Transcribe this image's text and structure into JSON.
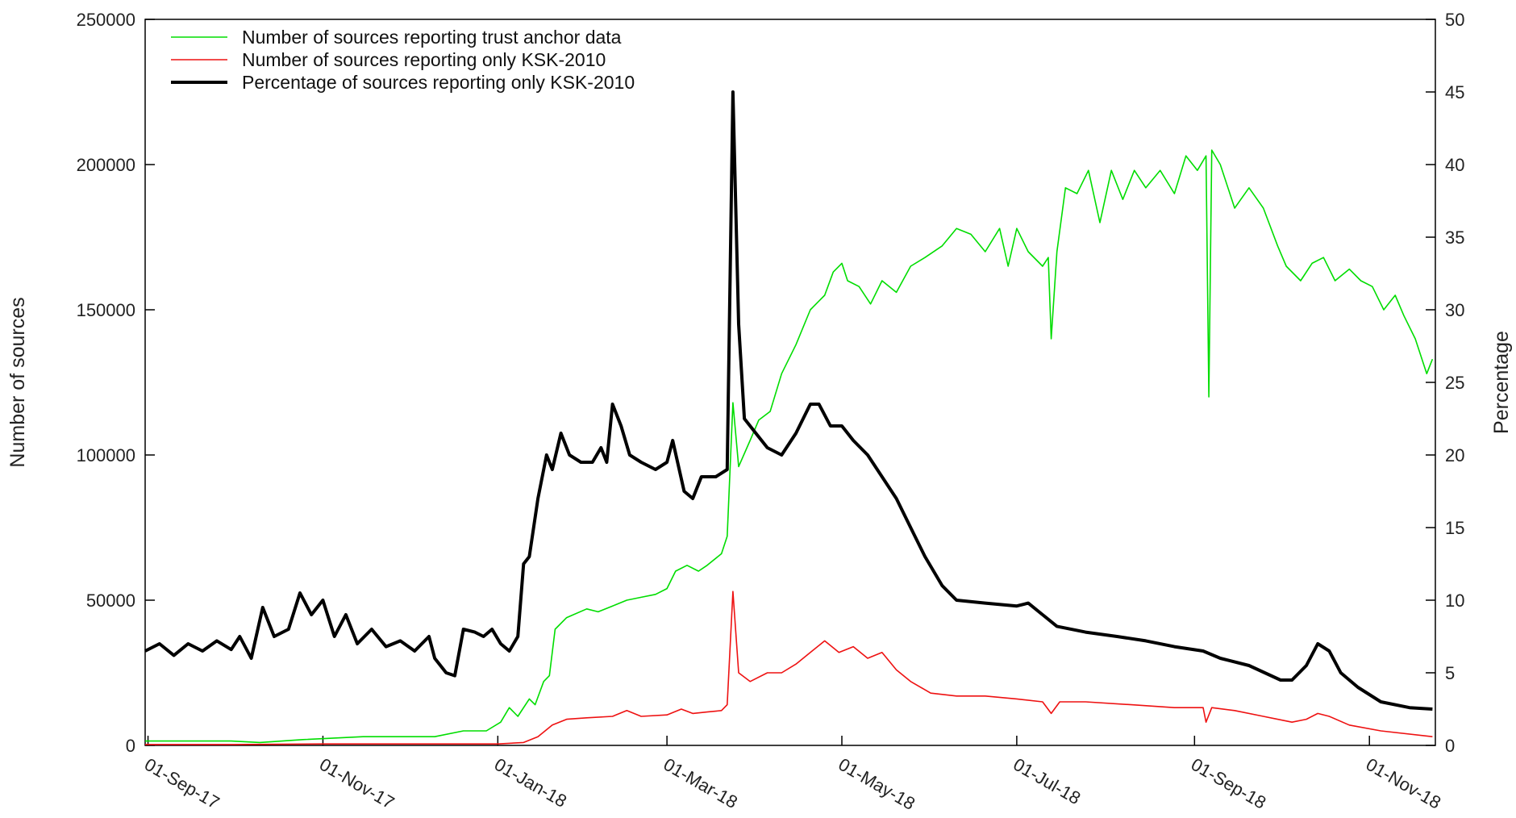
{
  "chart_data": {
    "type": "line",
    "title": "",
    "ylabel": "Number of sources",
    "y2label": "Percentage",
    "ylim": [
      0,
      250000
    ],
    "y2lim": [
      0,
      50
    ],
    "xlim": [
      "2017-08-31",
      "2018-11-24"
    ],
    "y_ticks": [
      0,
      50000,
      100000,
      150000,
      200000,
      250000
    ],
    "y2_ticks": [
      0,
      5,
      10,
      15,
      20,
      25,
      30,
      35,
      40,
      45,
      50
    ],
    "x_ticks": [
      {
        "date": "2017-09-01",
        "label": "01-Sep-17"
      },
      {
        "date": "2017-11-01",
        "label": "01-Nov-17"
      },
      {
        "date": "2018-01-01",
        "label": "01-Jan-18"
      },
      {
        "date": "2018-03-01",
        "label": "01-Mar-18"
      },
      {
        "date": "2018-05-01",
        "label": "01-May-18"
      },
      {
        "date": "2018-07-01",
        "label": "01-Jul-18"
      },
      {
        "date": "2018-09-01",
        "label": "01-Sep-18"
      },
      {
        "date": "2018-11-01",
        "label": "01-Nov-18"
      }
    ],
    "grid": false,
    "legend_position": "top-left",
    "series": [
      {
        "name": "Number of sources reporting trust anchor data",
        "axis": "left",
        "color": "#00dd00",
        "points": [
          [
            "2017-08-31",
            1500
          ],
          [
            "2017-09-30",
            1500
          ],
          [
            "2017-10-10",
            1000
          ],
          [
            "2017-10-25",
            2000
          ],
          [
            "2017-11-15",
            3000
          ],
          [
            "2017-12-10",
            3000
          ],
          [
            "2017-12-20",
            5000
          ],
          [
            "2017-12-28",
            5000
          ],
          [
            "2018-01-02",
            8000
          ],
          [
            "2018-01-05",
            13000
          ],
          [
            "2018-01-08",
            10000
          ],
          [
            "2018-01-12",
            16000
          ],
          [
            "2018-01-14",
            14000
          ],
          [
            "2018-01-17",
            22000
          ],
          [
            "2018-01-19",
            24000
          ],
          [
            "2018-01-21",
            40000
          ],
          [
            "2018-01-25",
            44000
          ],
          [
            "2018-02-01",
            47000
          ],
          [
            "2018-02-05",
            46000
          ],
          [
            "2018-02-10",
            48000
          ],
          [
            "2018-02-15",
            50000
          ],
          [
            "2018-02-20",
            51000
          ],
          [
            "2018-02-25",
            52000
          ],
          [
            "2018-03-01",
            54000
          ],
          [
            "2018-03-04",
            60000
          ],
          [
            "2018-03-08",
            62000
          ],
          [
            "2018-03-12",
            60000
          ],
          [
            "2018-03-15",
            62000
          ],
          [
            "2018-03-20",
            66000
          ],
          [
            "2018-03-22",
            72000
          ],
          [
            "2018-03-24",
            118000
          ],
          [
            "2018-03-26",
            96000
          ],
          [
            "2018-03-30",
            105000
          ],
          [
            "2018-04-02",
            112000
          ],
          [
            "2018-04-06",
            115000
          ],
          [
            "2018-04-10",
            128000
          ],
          [
            "2018-04-15",
            138000
          ],
          [
            "2018-04-20",
            150000
          ],
          [
            "2018-04-25",
            155000
          ],
          [
            "2018-04-28",
            163000
          ],
          [
            "2018-05-01",
            166000
          ],
          [
            "2018-05-03",
            160000
          ],
          [
            "2018-05-07",
            158000
          ],
          [
            "2018-05-11",
            152000
          ],
          [
            "2018-05-15",
            160000
          ],
          [
            "2018-05-20",
            156000
          ],
          [
            "2018-05-25",
            165000
          ],
          [
            "2018-05-30",
            168000
          ],
          [
            "2018-06-05",
            172000
          ],
          [
            "2018-06-10",
            178000
          ],
          [
            "2018-06-15",
            176000
          ],
          [
            "2018-06-20",
            170000
          ],
          [
            "2018-06-25",
            178000
          ],
          [
            "2018-06-28",
            165000
          ],
          [
            "2018-07-01",
            178000
          ],
          [
            "2018-07-05",
            170000
          ],
          [
            "2018-07-10",
            165000
          ],
          [
            "2018-07-12",
            168000
          ],
          [
            "2018-07-13",
            140000
          ],
          [
            "2018-07-15",
            170000
          ],
          [
            "2018-07-18",
            192000
          ],
          [
            "2018-07-22",
            190000
          ],
          [
            "2018-07-26",
            198000
          ],
          [
            "2018-07-30",
            180000
          ],
          [
            "2018-08-03",
            198000
          ],
          [
            "2018-08-07",
            188000
          ],
          [
            "2018-08-11",
            198000
          ],
          [
            "2018-08-15",
            192000
          ],
          [
            "2018-08-20",
            198000
          ],
          [
            "2018-08-25",
            190000
          ],
          [
            "2018-08-29",
            203000
          ],
          [
            "2018-09-02",
            198000
          ],
          [
            "2018-09-05",
            203000
          ],
          [
            "2018-09-06",
            120000
          ],
          [
            "2018-09-07",
            205000
          ],
          [
            "2018-09-10",
            200000
          ],
          [
            "2018-09-15",
            185000
          ],
          [
            "2018-09-20",
            192000
          ],
          [
            "2018-09-25",
            185000
          ],
          [
            "2018-09-30",
            172000
          ],
          [
            "2018-10-03",
            165000
          ],
          [
            "2018-10-08",
            160000
          ],
          [
            "2018-10-12",
            166000
          ],
          [
            "2018-10-16",
            168000
          ],
          [
            "2018-10-20",
            160000
          ],
          [
            "2018-10-25",
            164000
          ],
          [
            "2018-10-29",
            160000
          ],
          [
            "2018-11-02",
            158000
          ],
          [
            "2018-11-06",
            150000
          ],
          [
            "2018-11-10",
            155000
          ],
          [
            "2018-11-13",
            148000
          ],
          [
            "2018-11-17",
            140000
          ],
          [
            "2018-11-21",
            128000
          ],
          [
            "2018-11-23",
            133000
          ]
        ]
      },
      {
        "name": "Number of sources reporting only KSK-2010",
        "axis": "left",
        "color": "#ee1111",
        "points": [
          [
            "2017-08-31",
            300
          ],
          [
            "2017-10-01",
            300
          ],
          [
            "2017-11-01",
            500
          ],
          [
            "2017-12-01",
            500
          ],
          [
            "2018-01-01",
            500
          ],
          [
            "2018-01-10",
            1000
          ],
          [
            "2018-01-15",
            3000
          ],
          [
            "2018-01-20",
            7000
          ],
          [
            "2018-01-25",
            9000
          ],
          [
            "2018-02-01",
            9500
          ],
          [
            "2018-02-10",
            10000
          ],
          [
            "2018-02-15",
            12000
          ],
          [
            "2018-02-20",
            10000
          ],
          [
            "2018-03-01",
            10500
          ],
          [
            "2018-03-06",
            12500
          ],
          [
            "2018-03-10",
            11000
          ],
          [
            "2018-03-15",
            11500
          ],
          [
            "2018-03-20",
            12000
          ],
          [
            "2018-03-22",
            14000
          ],
          [
            "2018-03-24",
            53000
          ],
          [
            "2018-03-26",
            25000
          ],
          [
            "2018-03-30",
            22000
          ],
          [
            "2018-04-05",
            25000
          ],
          [
            "2018-04-10",
            25000
          ],
          [
            "2018-04-15",
            28000
          ],
          [
            "2018-04-20",
            32000
          ],
          [
            "2018-04-25",
            36000
          ],
          [
            "2018-04-30",
            32000
          ],
          [
            "2018-05-05",
            34000
          ],
          [
            "2018-05-10",
            30000
          ],
          [
            "2018-05-15",
            32000
          ],
          [
            "2018-05-20",
            26000
          ],
          [
            "2018-05-25",
            22000
          ],
          [
            "2018-06-01",
            18000
          ],
          [
            "2018-06-10",
            17000
          ],
          [
            "2018-06-20",
            17000
          ],
          [
            "2018-07-01",
            16000
          ],
          [
            "2018-07-10",
            15000
          ],
          [
            "2018-07-13",
            11000
          ],
          [
            "2018-07-16",
            15000
          ],
          [
            "2018-07-25",
            15000
          ],
          [
            "2018-08-10",
            14000
          ],
          [
            "2018-08-25",
            13000
          ],
          [
            "2018-09-04",
            13000
          ],
          [
            "2018-09-05",
            8000
          ],
          [
            "2018-09-07",
            13000
          ],
          [
            "2018-09-15",
            12000
          ],
          [
            "2018-09-25",
            10000
          ],
          [
            "2018-10-05",
            8000
          ],
          [
            "2018-10-10",
            9000
          ],
          [
            "2018-10-14",
            11000
          ],
          [
            "2018-10-18",
            10000
          ],
          [
            "2018-10-25",
            7000
          ],
          [
            "2018-11-05",
            5000
          ],
          [
            "2018-11-23",
            3000
          ]
        ]
      },
      {
        "name": "Percentage of sources reporting only KSK-2010",
        "axis": "right",
        "color": "#000000",
        "points": [
          [
            "2017-08-31",
            6.5
          ],
          [
            "2017-09-05",
            7.0
          ],
          [
            "2017-09-10",
            6.2
          ],
          [
            "2017-09-15",
            7.0
          ],
          [
            "2017-09-20",
            6.5
          ],
          [
            "2017-09-25",
            7.2
          ],
          [
            "2017-09-30",
            6.6
          ],
          [
            "2017-10-03",
            7.5
          ],
          [
            "2017-10-07",
            6.0
          ],
          [
            "2017-10-11",
            9.5
          ],
          [
            "2017-10-15",
            7.5
          ],
          [
            "2017-10-20",
            8.0
          ],
          [
            "2017-10-24",
            10.5
          ],
          [
            "2017-10-28",
            9.0
          ],
          [
            "2017-11-01",
            10.0
          ],
          [
            "2017-11-05",
            7.5
          ],
          [
            "2017-11-09",
            9.0
          ],
          [
            "2017-11-13",
            7.0
          ],
          [
            "2017-11-18",
            8.0
          ],
          [
            "2017-11-23",
            6.8
          ],
          [
            "2017-11-28",
            7.2
          ],
          [
            "2017-12-03",
            6.5
          ],
          [
            "2017-12-08",
            7.5
          ],
          [
            "2017-12-10",
            6.0
          ],
          [
            "2017-12-14",
            5.0
          ],
          [
            "2017-12-17",
            4.8
          ],
          [
            "2017-12-20",
            8.0
          ],
          [
            "2017-12-24",
            7.8
          ],
          [
            "2017-12-27",
            7.5
          ],
          [
            "2017-12-30",
            8.0
          ],
          [
            "2018-01-02",
            7.0
          ],
          [
            "2018-01-05",
            6.5
          ],
          [
            "2018-01-08",
            7.5
          ],
          [
            "2018-01-10",
            12.5
          ],
          [
            "2018-01-12",
            13.0
          ],
          [
            "2018-01-15",
            17.0
          ],
          [
            "2018-01-18",
            20.0
          ],
          [
            "2018-01-20",
            19.0
          ],
          [
            "2018-01-23",
            21.5
          ],
          [
            "2018-01-26",
            20.0
          ],
          [
            "2018-01-30",
            19.5
          ],
          [
            "2018-02-03",
            19.5
          ],
          [
            "2018-02-06",
            20.5
          ],
          [
            "2018-02-08",
            19.5
          ],
          [
            "2018-02-10",
            23.5
          ],
          [
            "2018-02-13",
            22.0
          ],
          [
            "2018-02-16",
            20.0
          ],
          [
            "2018-02-20",
            19.5
          ],
          [
            "2018-02-25",
            19.0
          ],
          [
            "2018-03-01",
            19.5
          ],
          [
            "2018-03-03",
            21.0
          ],
          [
            "2018-03-07",
            17.5
          ],
          [
            "2018-03-10",
            17.0
          ],
          [
            "2018-03-13",
            18.5
          ],
          [
            "2018-03-18",
            18.5
          ],
          [
            "2018-03-22",
            19.0
          ],
          [
            "2018-03-24",
            45.0
          ],
          [
            "2018-03-26",
            29.0
          ],
          [
            "2018-03-28",
            22.5
          ],
          [
            "2018-04-01",
            21.5
          ],
          [
            "2018-04-05",
            20.5
          ],
          [
            "2018-04-10",
            20.0
          ],
          [
            "2018-04-15",
            21.5
          ],
          [
            "2018-04-20",
            23.5
          ],
          [
            "2018-04-23",
            23.5
          ],
          [
            "2018-04-27",
            22.0
          ],
          [
            "2018-05-01",
            22.0
          ],
          [
            "2018-05-05",
            21.0
          ],
          [
            "2018-05-10",
            20.0
          ],
          [
            "2018-05-15",
            18.5
          ],
          [
            "2018-05-20",
            17.0
          ],
          [
            "2018-05-25",
            15.0
          ],
          [
            "2018-05-30",
            13.0
          ],
          [
            "2018-06-05",
            11.0
          ],
          [
            "2018-06-10",
            10.0
          ],
          [
            "2018-06-20",
            9.8
          ],
          [
            "2018-07-01",
            9.6
          ],
          [
            "2018-07-05",
            9.8
          ],
          [
            "2018-07-10",
            9.0
          ],
          [
            "2018-07-15",
            8.2
          ],
          [
            "2018-07-25",
            7.8
          ],
          [
            "2018-08-05",
            7.5
          ],
          [
            "2018-08-15",
            7.2
          ],
          [
            "2018-08-25",
            6.8
          ],
          [
            "2018-09-04",
            6.5
          ],
          [
            "2018-09-10",
            6.0
          ],
          [
            "2018-09-20",
            5.5
          ],
          [
            "2018-10-01",
            4.5
          ],
          [
            "2018-10-05",
            4.5
          ],
          [
            "2018-10-10",
            5.5
          ],
          [
            "2018-10-14",
            7.0
          ],
          [
            "2018-10-18",
            6.5
          ],
          [
            "2018-10-22",
            5.0
          ],
          [
            "2018-10-28",
            4.0
          ],
          [
            "2018-11-05",
            3.0
          ],
          [
            "2018-11-15",
            2.6
          ],
          [
            "2018-11-23",
            2.5
          ]
        ]
      }
    ]
  }
}
